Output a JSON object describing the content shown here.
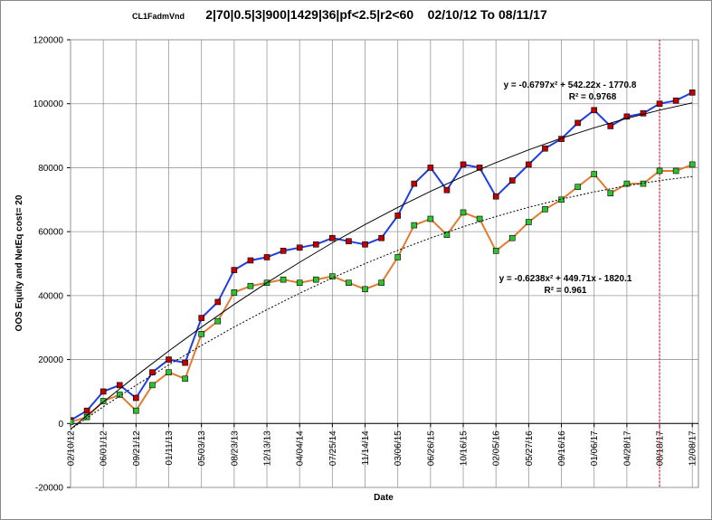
{
  "chart_data": {
    "type": "line",
    "supertitle": "CL1FadmVnd",
    "title": "2|70|0.5|3|900|1429|36|pf<2.5|r2<60    02/10/12 To 08/11/17",
    "x_label": "Date",
    "y_label": "OOS Equity and NetEq cost= 20",
    "xlim": [
      0,
      307
    ],
    "ylim": [
      -20000,
      120000
    ],
    "yticks": [
      -20000,
      0,
      20000,
      40000,
      60000,
      80000,
      100000,
      120000
    ],
    "xticks": [
      {
        "value": 0,
        "label": "02/10/12"
      },
      {
        "value": 16,
        "label": "06/01/12"
      },
      {
        "value": 32,
        "label": "09/21/12"
      },
      {
        "value": 48,
        "label": "01/11/13"
      },
      {
        "value": 64,
        "label": "05/03/13"
      },
      {
        "value": 80,
        "label": "08/23/13"
      },
      {
        "value": 96,
        "label": "12/13/13"
      },
      {
        "value": 112,
        "label": "04/04/14"
      },
      {
        "value": 128,
        "label": "07/25/14"
      },
      {
        "value": 144,
        "label": "11/14/14"
      },
      {
        "value": 160,
        "label": "03/06/15"
      },
      {
        "value": 176,
        "label": "06/26/15"
      },
      {
        "value": 192,
        "label": "10/16/15"
      },
      {
        "value": 208,
        "label": "02/05/16"
      },
      {
        "value": 224,
        "label": "05/27/16"
      },
      {
        "value": 240,
        "label": "09/16/16"
      },
      {
        "value": 256,
        "label": "01/06/17"
      },
      {
        "value": 272,
        "label": "04/28/17"
      },
      {
        "value": 288,
        "label": "08/18/17"
      },
      {
        "value": 304,
        "label": "12/08/17"
      }
    ],
    "grid": true,
    "vline_x": 288,
    "vline_color": "#e02020",
    "x": [
      0,
      8,
      16,
      24,
      32,
      40,
      48,
      56,
      64,
      72,
      80,
      88,
      96,
      104,
      112,
      120,
      128,
      136,
      144,
      152,
      160,
      168,
      176,
      184,
      192,
      200,
      208,
      216,
      224,
      232,
      240,
      248,
      256,
      264,
      272,
      280,
      288,
      296,
      304
    ],
    "series": [
      {
        "color": "#1f3fe0",
        "marker_color": "#c00000",
        "values": [
          1000,
          4000,
          10000,
          12000,
          8000,
          16000,
          20000,
          19000,
          33000,
          38000,
          48000,
          51000,
          52000,
          54000,
          55000,
          56000,
          58000,
          57000,
          56000,
          58000,
          65000,
          75000,
          80000,
          73000,
          81000,
          80000,
          71000,
          76000,
          81000,
          86000,
          89000,
          94000,
          98000,
          93000,
          96000,
          97000,
          100000,
          101000,
          103500
        ]
      },
      {
        "color": "#e07b30",
        "marker_color": "#30c030",
        "values": [
          500,
          2000,
          7000,
          9000,
          4000,
          12000,
          16000,
          14000,
          28000,
          32000,
          41000,
          43000,
          44000,
          45000,
          44000,
          45000,
          46000,
          44000,
          42000,
          44000,
          52000,
          62000,
          64000,
          59000,
          66000,
          64000,
          54000,
          58000,
          63000,
          67000,
          70000,
          74000,
          78000,
          72000,
          75000,
          75000,
          79000,
          79000,
          81000
        ]
      }
    ],
    "trendlines": [
      {
        "equation": "y = -0.6797x² + 542.22x - 1770.8",
        "r2": "R² = 0.9768",
        "dash": false,
        "x": [
          0,
          16,
          32,
          48,
          64,
          80,
          96,
          112,
          128,
          144,
          160,
          176,
          192,
          208,
          224,
          240,
          256,
          272,
          288,
          304
        ],
        "values": [
          -1771,
          6731,
          14884,
          22690,
          30147,
          37257,
          44018,
          50432,
          56497,
          62215,
          67584,
          72605,
          77278,
          81604,
          85581,
          89211,
          92492,
          95425,
          98010,
          100249
        ]
      },
      {
        "equation": "y = -0.6238x² + 449.71x - 1820.1",
        "r2": "R² = 0.961",
        "dash": true,
        "x": [
          0,
          16,
          32,
          48,
          64,
          80,
          96,
          112,
          128,
          144,
          160,
          176,
          192,
          208,
          224,
          240,
          256,
          272,
          288,
          304
        ],
        "values": [
          -1820,
          5215,
          11932,
          18329,
          24406,
          30165,
          35603,
          40723,
          45523,
          50003,
          54165,
          58006,
          61528,
          64732,
          67615,
          70179,
          72425,
          74350,
          75956,
          77243
        ]
      }
    ]
  }
}
